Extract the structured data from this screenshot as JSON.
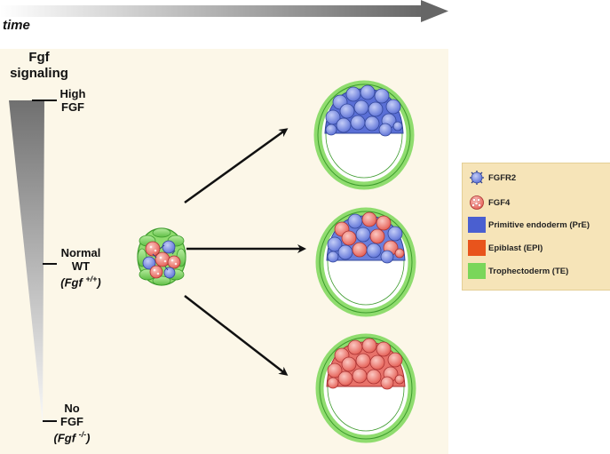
{
  "header": {
    "time_label": "time"
  },
  "axis": {
    "title_line1": "Fgf",
    "title_line2": "signaling",
    "levels": [
      {
        "line1": "High",
        "line2": "FGF",
        "genotype": ""
      },
      {
        "line1": "Normal",
        "line2": "WT",
        "genotype": "(Fgf +/+)"
      },
      {
        "line1": "No",
        "line2": "FGF",
        "genotype": "(Fgf -/-)"
      }
    ]
  },
  "legend": {
    "items": [
      {
        "label": "FGFR2",
        "icon": "fgfr2-cell-icon"
      },
      {
        "label": "FGF4",
        "icon": "fgf4-cell-icon"
      },
      {
        "label": "Primitive endoderm (PrE)",
        "color": "#4a5fd0"
      },
      {
        "label": "Epiblast (EPI)",
        "color": "#e8541c"
      },
      {
        "label": "Trophectoderm (TE)",
        "color": "#7ad65a"
      }
    ]
  },
  "colors": {
    "pre": "#4a5fd0",
    "epi": "#e8541c",
    "te": "#7ad65a",
    "blue_cell": "#7b8fe6",
    "red_cell": "#ef7a72",
    "panel": "#fcf7e8",
    "legend_bg": "#f6e4b8"
  }
}
